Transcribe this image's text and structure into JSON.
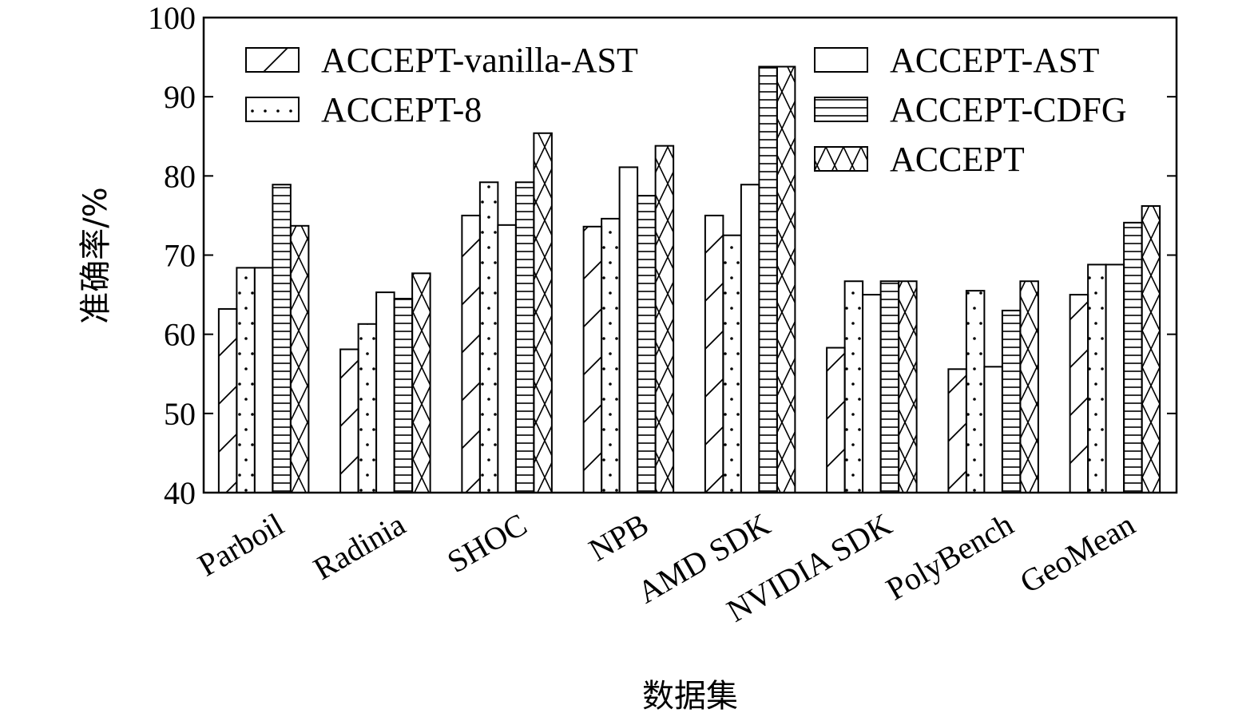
{
  "chart_data": {
    "type": "bar",
    "xlabel": "数据集",
    "ylabel": "准确率/%",
    "ylim": [
      40,
      100
    ],
    "yticks": [
      40,
      50,
      60,
      70,
      80,
      90,
      100
    ],
    "grid": false,
    "legend_position": "top",
    "categories": [
      "Parboil",
      "Radinia",
      "SHOC",
      "NPB",
      "AMD SDK",
      "NVIDIA SDK",
      "PolyBench",
      "GeoMean"
    ],
    "series": [
      {
        "name": "ACCEPT-vanilla-AST",
        "pattern": "diagonal-hatch",
        "values": [
          63.2,
          58.1,
          75.0,
          73.6,
          75.0,
          58.3,
          55.6,
          65.0
        ]
      },
      {
        "name": "ACCEPT-8",
        "pattern": "dots",
        "values": [
          68.4,
          61.3,
          79.2,
          74.6,
          72.5,
          66.7,
          65.5,
          68.8
        ]
      },
      {
        "name": "ACCEPT-AST",
        "pattern": "plain",
        "values": [
          68.4,
          65.3,
          73.8,
          81.1,
          78.9,
          65.0,
          55.9,
          68.8
        ]
      },
      {
        "name": "ACCEPT-CDFG",
        "pattern": "horizontal-lines",
        "values": [
          78.9,
          64.5,
          79.2,
          77.5,
          93.8,
          66.7,
          63.0,
          74.1
        ]
      },
      {
        "name": "ACCEPT",
        "pattern": "cross-hatch",
        "values": [
          73.7,
          67.7,
          85.4,
          83.8,
          93.8,
          66.7,
          66.7,
          76.2
        ]
      }
    ]
  }
}
